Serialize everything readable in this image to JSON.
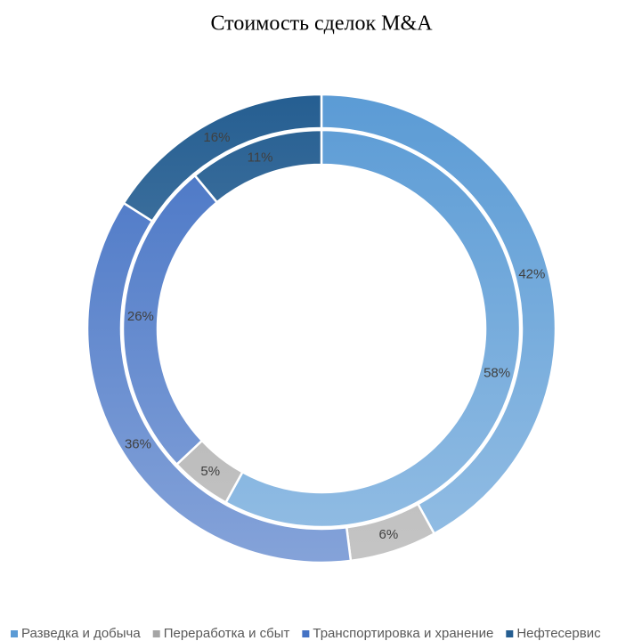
{
  "chart_data": {
    "type": "donut",
    "title": "Стоимость сделок M&A",
    "categories": [
      "Разведка и добыча",
      "Переработка и сбыт",
      "Транспортировка и хранение",
      "Нефтесервис"
    ],
    "colors": [
      "#5b9bd5",
      "#a5a5a5",
      "#4472c4",
      "#255e91"
    ],
    "series": [
      {
        "values": [
          42,
          6,
          36,
          16
        ],
        "value_labels": [
          "42%",
          "6%",
          "36%",
          "16%"
        ]
      },
      {
        "values": [
          58,
          5,
          26,
          11
        ],
        "value_labels": [
          "58%",
          "5%",
          "26%",
          "11%"
        ]
      }
    ],
    "legend": "bottom"
  }
}
